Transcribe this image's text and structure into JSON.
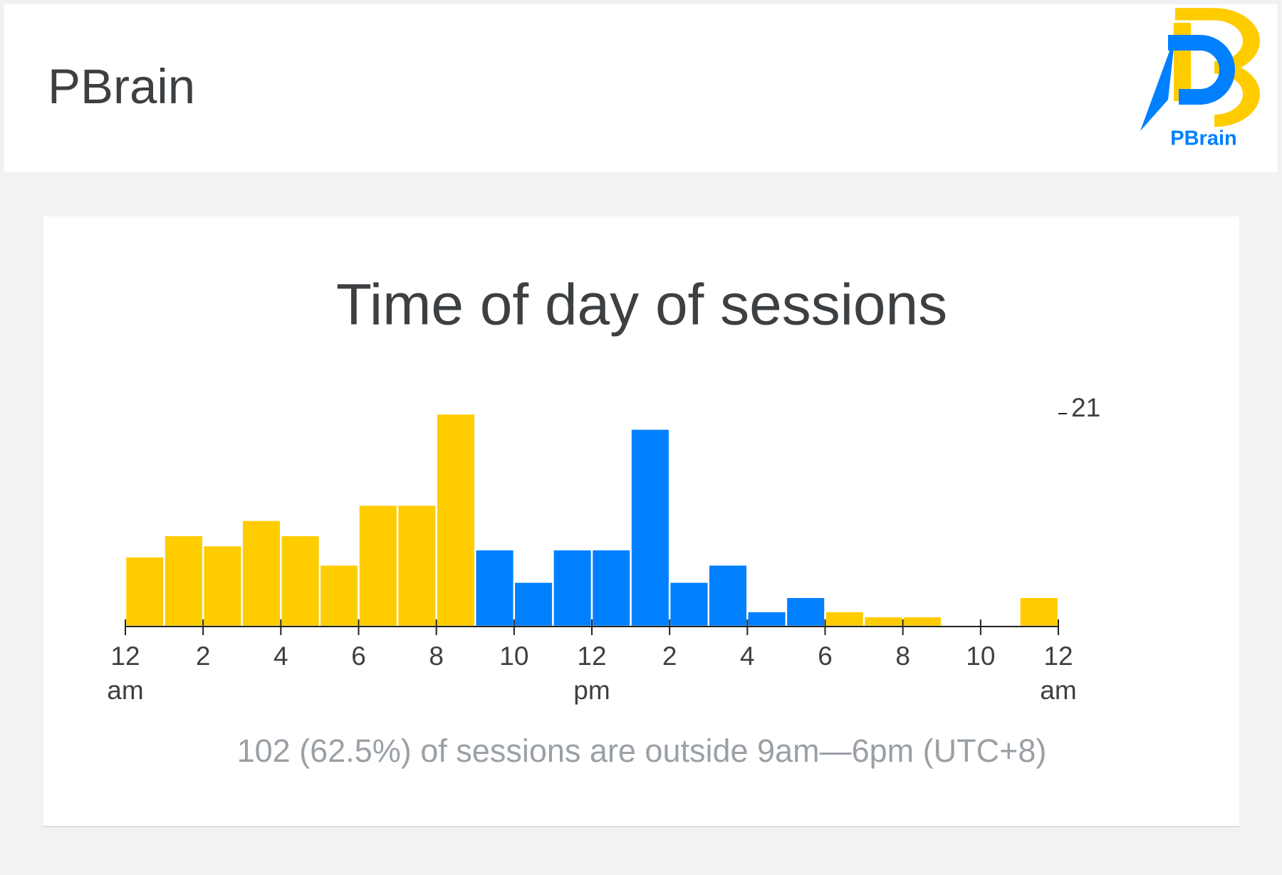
{
  "header": {
    "title": "PBrain",
    "logo_text": "PBrain"
  },
  "chart_data": {
    "type": "histogram",
    "title": "Time of day of sessions",
    "bins": [
      0,
      1,
      2,
      3,
      4,
      5,
      6,
      7,
      8,
      9,
      10,
      11,
      12,
      13,
      14,
      15,
      16,
      17,
      18,
      19,
      20,
      21,
      22,
      23,
      24
    ],
    "values": [
      6.9,
      9,
      8,
      10.5,
      9,
      6.1,
      12,
      12,
      21,
      7.6,
      4.4,
      7.6,
      7.6,
      19.5,
      4.4,
      6.1,
      1.5,
      2.9,
      1.5,
      1,
      1,
      0,
      0,
      2.9
    ],
    "colors": [
      "#ffcc00",
      "#ffcc00",
      "#ffcc00",
      "#ffcc00",
      "#ffcc00",
      "#ffcc00",
      "#ffcc00",
      "#ffcc00",
      "#ffcc00",
      "#0080ff",
      "#0080ff",
      "#0080ff",
      "#0080ff",
      "#0080ff",
      "#0080ff",
      "#0080ff",
      "#0080ff",
      "#0080ff",
      "#ffcc00",
      "#ffcc00",
      "#ffcc00",
      "#ffcc00",
      "#ffcc00",
      "#ffcc00"
    ],
    "xlim": [
      0,
      24
    ],
    "xticks": [
      {
        "value": 0,
        "label": "12",
        "sublabel": "am"
      },
      2,
      4,
      6,
      8,
      10,
      {
        "value": 12,
        "label": "12",
        "sublabel": "pm"
      },
      {
        "value": 14,
        "label": "2"
      },
      {
        "value": 16,
        "label": "4"
      },
      {
        "value": 18,
        "label": "6"
      },
      {
        "value": 20,
        "label": "8"
      },
      {
        "value": 22,
        "label": "10"
      },
      {
        "value": 24,
        "label": "12",
        "sublabel": "am"
      }
    ],
    "ylim": [
      0,
      21
    ],
    "yticks": [
      21
    ],
    "note": "102 (62.5%) of sessions are outside 9am—6pm (UTC+8)"
  }
}
